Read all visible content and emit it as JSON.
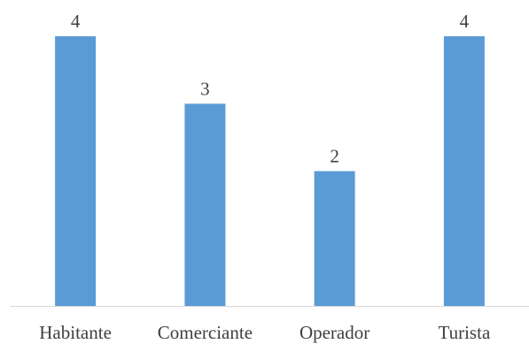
{
  "chart_data": {
    "type": "bar",
    "categories": [
      "Habitante",
      "Comerciante",
      "Operador",
      "Turista"
    ],
    "values": [
      4,
      3,
      2,
      4
    ],
    "title": "",
    "xlabel": "",
    "ylabel": "",
    "ylim": [
      0,
      4
    ],
    "grid": false,
    "legend": "none",
    "data_labels": true,
    "bar_color": "#5b9bd5",
    "axis_color": "#d9d9d9",
    "text_color": "#404040"
  }
}
